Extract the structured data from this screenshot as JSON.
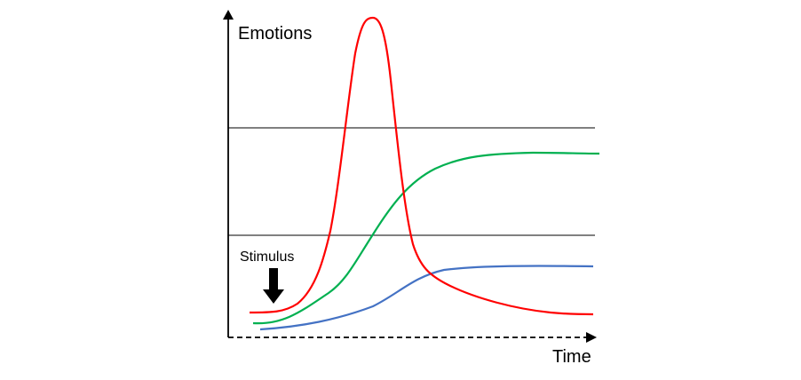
{
  "labels": {
    "y_axis": "Emotions",
    "x_axis": "Time",
    "stimulus": "Stimulus"
  },
  "curves": [
    {
      "id": "red",
      "color": "#ff0000"
    },
    {
      "id": "green",
      "color": "#00b050"
    },
    {
      "id": "blue",
      "color": "#4472c4"
    }
  ],
  "threshold_lines": 2,
  "colors": {
    "axis": "#000000",
    "threshold": "#000000",
    "arrow": "#000000"
  }
}
